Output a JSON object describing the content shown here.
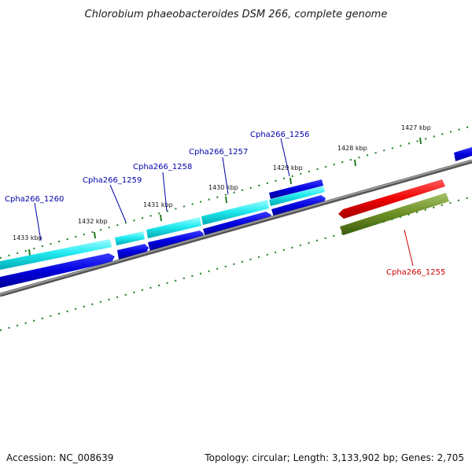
{
  "title": "Chlorobium phaeobacteroides DSM 266, complete genome",
  "footer": {
    "accession": "Accession: NC_008639",
    "summary": "Topology: circular; Length: 3,133,902 bp; Genes: 2,705"
  },
  "ticks": [
    {
      "label": "1427 kbp"
    },
    {
      "label": "1428 kbp"
    },
    {
      "label": "1429 kbp"
    },
    {
      "label": "1430 kbp"
    },
    {
      "label": "1431 kbp"
    },
    {
      "label": "1432 kbp"
    },
    {
      "label": "1433 kbp"
    }
  ],
  "genes": [
    {
      "label": "Cpha266_1255",
      "color": "#cc0000"
    },
    {
      "label": "Cpha266_1256",
      "color": "#0000aa"
    },
    {
      "label": "Cpha266_1257",
      "color": "#0000aa"
    },
    {
      "label": "Cpha266_1258",
      "color": "#0000aa"
    },
    {
      "label": "Cpha266_1259",
      "color": "#0000aa"
    },
    {
      "label": "Cpha266_1260",
      "color": "#0000aa"
    }
  ],
  "colors": {
    "backbone": "#7a7a7a",
    "tick": "#1f7a1f",
    "forward_gene": "#0000dd",
    "cds": "#00e0e0",
    "reverse_gene": "#ee0000",
    "reverse_cds": "#6b8e23"
  }
}
